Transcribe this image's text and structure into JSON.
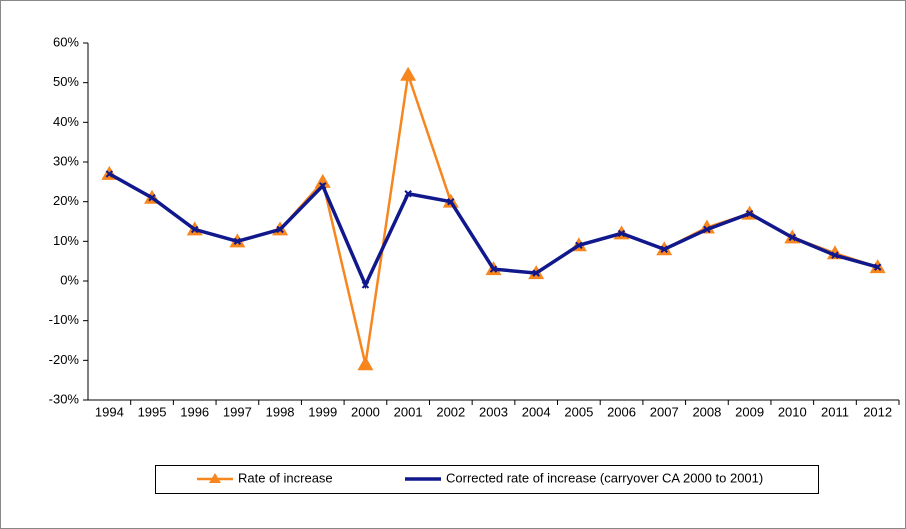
{
  "chart_data": {
    "type": "line",
    "categories": [
      "1994",
      "1995",
      "1996",
      "1997",
      "1998",
      "1999",
      "2000",
      "2001",
      "2002",
      "2003",
      "2004",
      "2005",
      "2006",
      "2007",
      "2008",
      "2009",
      "2010",
      "2011",
      "2012"
    ],
    "series": [
      {
        "name": "Rate of increase",
        "color": "#f7861e",
        "marker": "triangle",
        "values": [
          27,
          21,
          13,
          10,
          13,
          25,
          -21,
          52,
          20,
          3,
          2,
          9,
          12,
          8,
          13.5,
          17,
          11,
          7,
          3.5
        ]
      },
      {
        "name": "Corrected rate of increase (carryover CA 2000 to 2001)",
        "color": "#10188c",
        "marker": "x",
        "values": [
          27,
          21,
          13,
          10,
          13,
          24,
          -1,
          22,
          20,
          3,
          2,
          9,
          12,
          8,
          13,
          17,
          11,
          6.5,
          3.5
        ]
      }
    ],
    "ylim": [
      -30,
      60
    ],
    "yticks": [
      {
        "value": -30,
        "label": "-30%"
      },
      {
        "value": -20,
        "label": "-20%"
      },
      {
        "value": -10,
        "label": "-10%"
      },
      {
        "value": 0,
        "label": "0%"
      },
      {
        "value": 10,
        "label": "10%"
      },
      {
        "value": 20,
        "label": "20%"
      },
      {
        "value": 30,
        "label": "30%"
      },
      {
        "value": 40,
        "label": "40%"
      },
      {
        "value": 50,
        "label": "50%"
      },
      {
        "value": 60,
        "label": "60%"
      }
    ],
    "grid": false,
    "legend": "bottom"
  }
}
